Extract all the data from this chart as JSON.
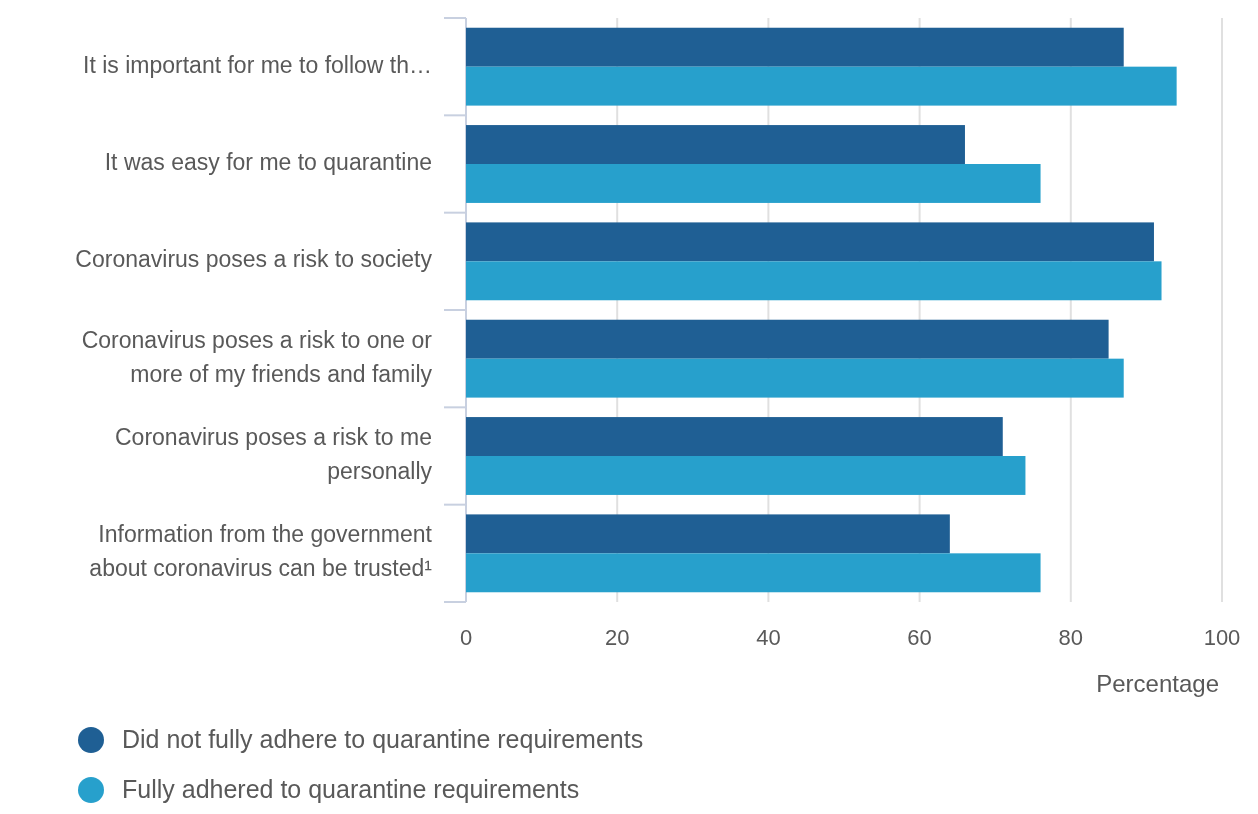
{
  "chart_data": {
    "type": "bar",
    "orientation": "horizontal",
    "xlabel": "Percentage",
    "categories": [
      "It is important for me to follow th…",
      "It was easy for me to quarantine",
      "Coronavirus poses a risk to society",
      "Coronavirus poses a risk to one or more of my friends and family",
      "Coronavirus poses a risk to me personally",
      "Information from the government about coronavirus can be trusted¹"
    ],
    "series": [
      {
        "name": "Did not fully adhere to quarantine requirements",
        "color": "#1f5f94",
        "values": [
          87,
          66,
          91,
          85,
          71,
          64
        ]
      },
      {
        "name": "Fully adhered to quarantine requirements",
        "color": "#27a0cc",
        "values": [
          94,
          76,
          92,
          87,
          74,
          76
        ]
      }
    ],
    "xlim": [
      0,
      100
    ],
    "xticks": [
      0,
      20,
      40,
      60,
      80,
      100
    ],
    "grid": "x",
    "legend": "bottom"
  }
}
